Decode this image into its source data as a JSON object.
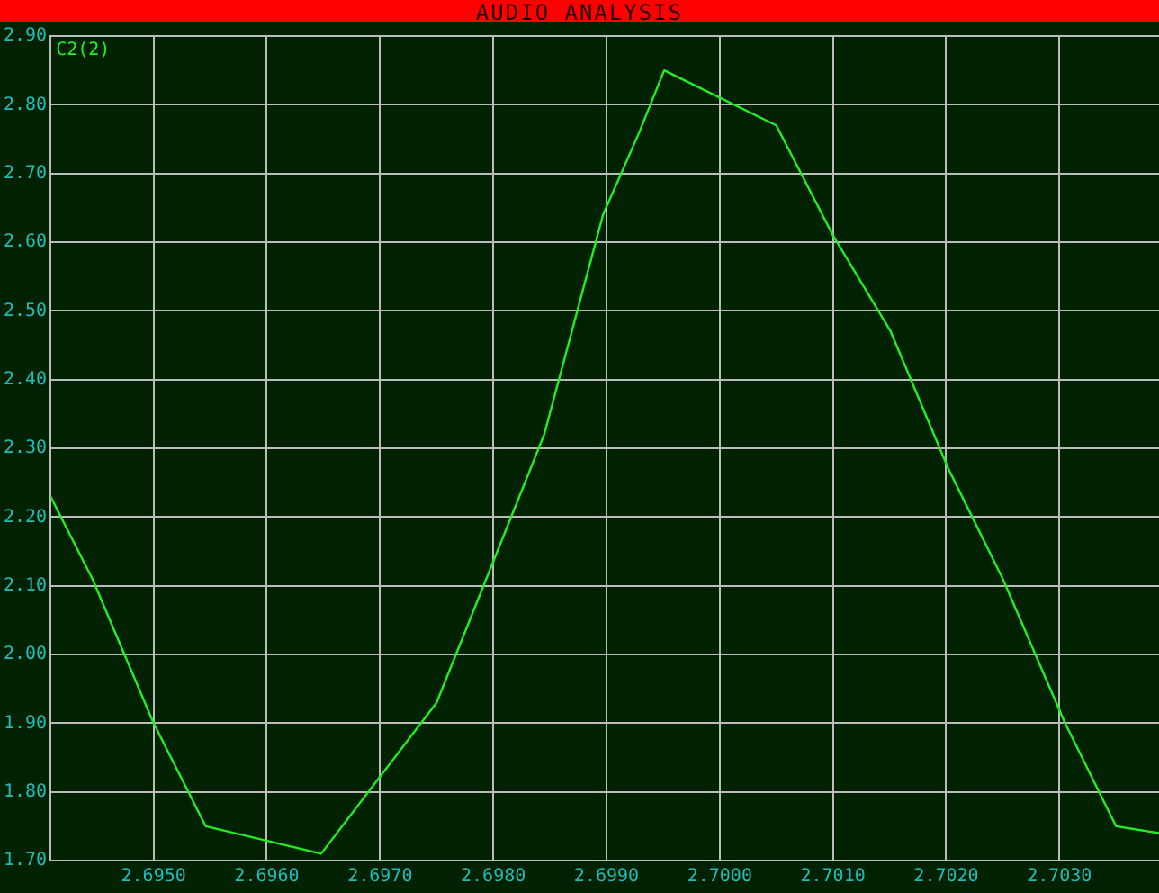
{
  "chart_data": {
    "type": "line",
    "title": "AUDIO ANALYSIS",
    "legend": "top left",
    "grid": true,
    "marker": "none",
    "line_style": "solid",
    "xlim": [
      2.69409,
      2.70388
    ],
    "xticks": [
      {
        "value": 2.695,
        "label": "2.6950"
      },
      {
        "value": 2.696,
        "label": "2.6960"
      },
      {
        "value": 2.697,
        "label": "2.6970"
      },
      {
        "value": 2.698,
        "label": "2.6980"
      },
      {
        "value": 2.699,
        "label": "2.6990"
      },
      {
        "value": 2.7,
        "label": "2.7000"
      },
      {
        "value": 2.701,
        "label": "2.7010"
      },
      {
        "value": 2.702,
        "label": "2.7020"
      },
      {
        "value": 2.703,
        "label": "2.7030"
      }
    ],
    "ylim": [
      1.7,
      2.9
    ],
    "yticks": [
      {
        "value": 1.7,
        "label": "1.70"
      },
      {
        "value": 1.8,
        "label": "1.80"
      },
      {
        "value": 1.9,
        "label": "1.90"
      },
      {
        "value": 2.0,
        "label": "2.00"
      },
      {
        "value": 2.1,
        "label": "2.10"
      },
      {
        "value": 2.2,
        "label": "2.20"
      },
      {
        "value": 2.3,
        "label": "2.30"
      },
      {
        "value": 2.4,
        "label": "2.40"
      },
      {
        "value": 2.5,
        "label": "2.50"
      },
      {
        "value": 2.6,
        "label": "2.60"
      },
      {
        "value": 2.7,
        "label": "2.70"
      },
      {
        "value": 2.8,
        "label": "2.80"
      },
      {
        "value": 2.9,
        "label": "2.90"
      }
    ],
    "series": [
      {
        "name": "C2(2)",
        "color": "#22ee22",
        "x": [
          2.69409,
          2.69446,
          2.695,
          2.69546,
          2.69648,
          2.6975,
          2.69845,
          2.69897,
          2.69929,
          2.69951,
          2.7005,
          2.701,
          2.70151,
          2.70202,
          2.7025,
          2.70305,
          2.7035,
          2.70388
        ],
        "values": [
          2.23,
          2.11,
          1.9,
          1.75,
          1.71,
          1.93,
          2.32,
          2.64,
          2.76,
          2.85,
          2.77,
          2.61,
          2.47,
          2.27,
          2.11,
          1.9,
          1.75,
          1.74
        ]
      }
    ]
  }
}
